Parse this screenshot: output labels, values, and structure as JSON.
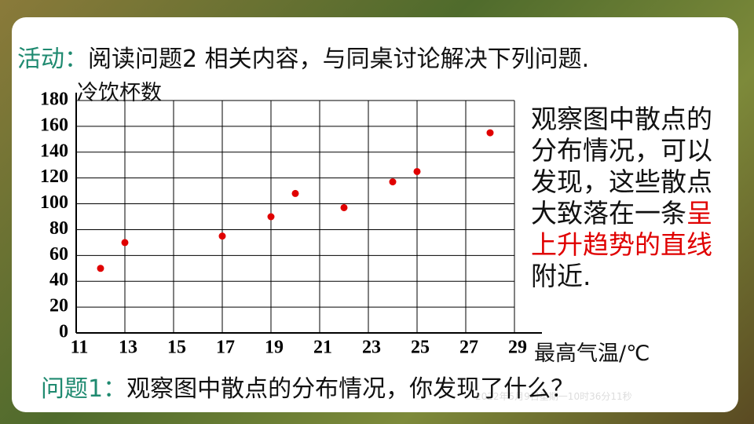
{
  "header": {
    "label": "活动：",
    "text": "阅读问题2 相关内容，与同桌讨论解决下列问题."
  },
  "chart_data": {
    "type": "scatter",
    "ylabel": "冷饮杯数",
    "xlabel": "最高气温/℃",
    "x": [
      12,
      13,
      17,
      19,
      20,
      22,
      24,
      25,
      28
    ],
    "values": [
      50,
      70,
      75,
      90,
      108,
      97,
      117,
      125,
      155
    ],
    "color": "#e00000",
    "xlim": [
      11,
      29
    ],
    "xticks": [
      11,
      13,
      15,
      17,
      19,
      21,
      23,
      25,
      27,
      29
    ],
    "ylim": [
      0,
      180
    ],
    "yticks": [
      0,
      20,
      40,
      60,
      80,
      100,
      120,
      140,
      160,
      180
    ],
    "grid": true
  },
  "side_text": {
    "before": "观察图中散点的分布情况，可以发现，这些散点大致落在一条",
    "highlight": "呈上升趋势的直线",
    "after": "附近."
  },
  "question": {
    "label": "问题1：",
    "text": "观察图中散点的分布情况，你发现了什么？"
  },
  "timestamp": "2022年5月9日星期一10时36分11秒"
}
